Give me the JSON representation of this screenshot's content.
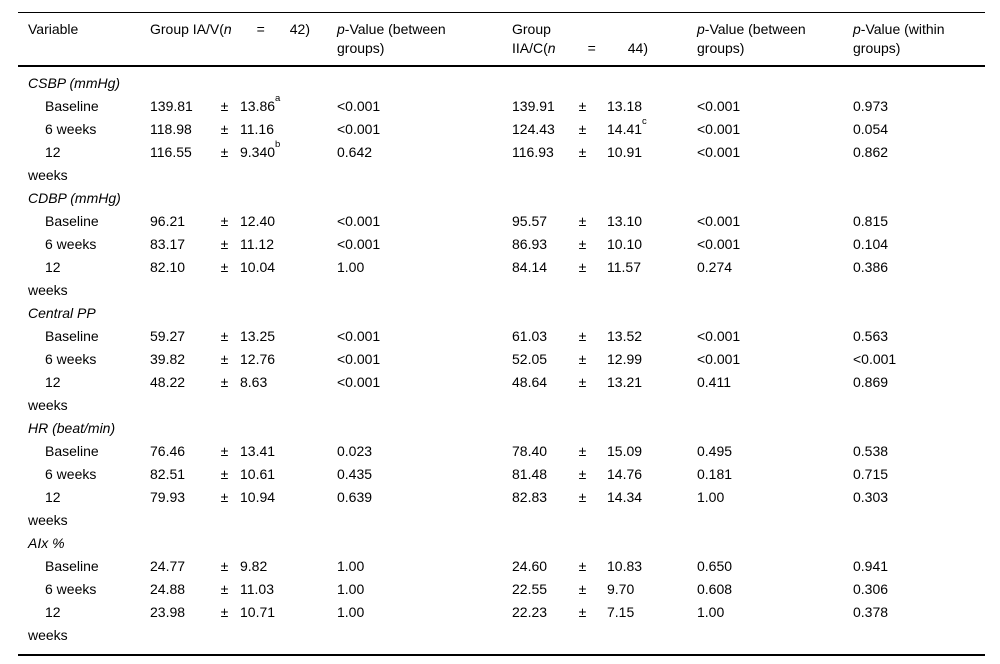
{
  "plus_minus": "±",
  "header": {
    "variable": "Variable",
    "group1": {
      "pre": "Group IA/V(",
      "n": "n",
      "eq": "=",
      "num": "42)"
    },
    "p_between1": {
      "p": "p",
      "line1_rest": "-Value (between",
      "line2": "groups)"
    },
    "group2": {
      "line1": "Group",
      "pre": "IIA/C(",
      "n": "n",
      "eq": "=",
      "num": "44)"
    },
    "p_between2": {
      "p": "p",
      "line1_rest": "-Value (between",
      "line2": "groups)"
    },
    "p_within": {
      "p": "p",
      "line1_rest": "-Value (within",
      "line2": "groups)"
    }
  },
  "sections": [
    {
      "variable": "CSBP (mmHg)",
      "rows": [
        {
          "label": "Baseline",
          "g1_mean": "139.81",
          "g1_sd": "13.86",
          "g1_sup": "a",
          "p1": "<0.001",
          "g2_mean": "139.91",
          "g2_sd": "13.18",
          "g2_sup": "",
          "p2": "<0.001",
          "p3": "0.973"
        },
        {
          "label": "6 weeks",
          "g1_mean": "118.98",
          "g1_sd": "11.16",
          "g1_sup": "",
          "p1": "<0.001",
          "g2_mean": "124.43",
          "g2_sd": "14.41",
          "g2_sup": "c",
          "p2": "<0.001",
          "p3": "0.054"
        },
        {
          "label": "12\nweeks",
          "g1_mean": "116.55",
          "g1_sd": "9.340",
          "g1_sup": "b",
          "p1": "0.642",
          "g2_mean": "116.93",
          "g2_sd": "10.91",
          "g2_sup": "",
          "p2": "<0.001",
          "p3": "0.862"
        }
      ]
    },
    {
      "variable": "CDBP (mmHg)",
      "rows": [
        {
          "label": "Baseline",
          "g1_mean": "96.21",
          "g1_sd": "12.40",
          "g1_sup": "",
          "p1": "<0.001",
          "g2_mean": "95.57",
          "g2_sd": "13.10",
          "g2_sup": "",
          "p2": "<0.001",
          "p3": "0.815"
        },
        {
          "label": "6 weeks",
          "g1_mean": "83.17",
          "g1_sd": "11.12",
          "g1_sup": "",
          "p1": "<0.001",
          "g2_mean": "86.93",
          "g2_sd": "10.10",
          "g2_sup": "",
          "p2": "<0.001",
          "p3": "0.104"
        },
        {
          "label": "12\nweeks",
          "g1_mean": "82.10",
          "g1_sd": "10.04",
          "g1_sup": "",
          "p1": "1.00",
          "g2_mean": "84.14",
          "g2_sd": "11.57",
          "g2_sup": "",
          "p2": "0.274",
          "p3": "0.386"
        }
      ]
    },
    {
      "variable": "Central PP",
      "rows": [
        {
          "label": "Baseline",
          "g1_mean": "59.27",
          "g1_sd": "13.25",
          "g1_sup": "",
          "p1": "<0.001",
          "g2_mean": "61.03",
          "g2_sd": "13.52",
          "g2_sup": "",
          "p2": "<0.001",
          "p3": "0.563"
        },
        {
          "label": "6 weeks",
          "g1_mean": "39.82",
          "g1_sd": "12.76",
          "g1_sup": "",
          "p1": "<0.001",
          "g2_mean": "52.05",
          "g2_sd": "12.99",
          "g2_sup": "",
          "p2": "<0.001",
          "p3": "<0.001"
        },
        {
          "label": "12\nweeks",
          "g1_mean": "48.22",
          "g1_sd": "8.63",
          "g1_sup": "",
          "p1": "<0.001",
          "g2_mean": "48.64",
          "g2_sd": "13.21",
          "g2_sup": "",
          "p2": "0.411",
          "p3": "0.869"
        }
      ]
    },
    {
      "variable": "HR (beat/min)",
      "rows": [
        {
          "label": "Baseline",
          "g1_mean": "76.46",
          "g1_sd": "13.41",
          "g1_sup": "",
          "p1": "0.023",
          "g2_mean": "78.40",
          "g2_sd": "15.09",
          "g2_sup": "",
          "p2": "0.495",
          "p3": "0.538"
        },
        {
          "label": "6 weeks",
          "g1_mean": "82.51",
          "g1_sd": "10.61",
          "g1_sup": "",
          "p1": "0.435",
          "g2_mean": "81.48",
          "g2_sd": "14.76",
          "g2_sup": "",
          "p2": "0.181",
          "p3": "0.715"
        },
        {
          "label": "12\nweeks",
          "g1_mean": "79.93",
          "g1_sd": "10.94",
          "g1_sup": "",
          "p1": "0.639",
          "g2_mean": "82.83",
          "g2_sd": "14.34",
          "g2_sup": "",
          "p2": "1.00",
          "p3": "0.303"
        }
      ]
    },
    {
      "variable": "AIx %",
      "rows": [
        {
          "label": "Baseline",
          "g1_mean": "24.77",
          "g1_sd": "9.82",
          "g1_sup": "",
          "p1": "1.00",
          "g2_mean": "24.60",
          "g2_sd": "10.83",
          "g2_sup": "",
          "p2": "0.650",
          "p3": "0.941"
        },
        {
          "label": "6 weeks",
          "g1_mean": "24.88",
          "g1_sd": "11.03",
          "g1_sup": "",
          "p1": "1.00",
          "g2_mean": "22.55",
          "g2_sd": "9.70",
          "g2_sup": "",
          "p2": "0.608",
          "p3": "0.306"
        },
        {
          "label": "12\nweeks",
          "g1_mean": "23.98",
          "g1_sd": "10.71",
          "g1_sup": "",
          "p1": "1.00",
          "g2_mean": "22.23",
          "g2_sd": "7.15",
          "g2_sup": "",
          "p2": "1.00",
          "p3": "0.378"
        }
      ]
    }
  ]
}
